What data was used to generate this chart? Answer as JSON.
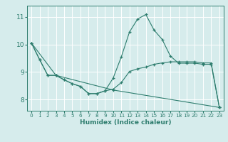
{
  "xlabel": "Humidex (Indice chaleur)",
  "background_color": "#d6ecec",
  "grid_color": "#ffffff",
  "line_color": "#2e7d6e",
  "xlim": [
    -0.5,
    23.5
  ],
  "ylim": [
    7.6,
    11.4
  ],
  "yticks": [
    8,
    9,
    10,
    11
  ],
  "xticks": [
    0,
    1,
    2,
    3,
    4,
    5,
    6,
    7,
    8,
    9,
    10,
    11,
    12,
    13,
    14,
    15,
    16,
    17,
    18,
    19,
    20,
    21,
    22,
    23
  ],
  "line1_x": [
    0,
    1,
    2,
    3,
    4,
    5,
    6,
    7,
    8,
    9,
    10,
    11,
    12,
    13,
    14,
    15,
    16,
    17,
    18,
    19,
    20,
    21,
    22,
    23
  ],
  "line1_y": [
    10.05,
    9.45,
    8.88,
    8.88,
    8.72,
    8.58,
    8.48,
    8.22,
    8.22,
    8.32,
    8.78,
    9.55,
    10.45,
    10.92,
    11.08,
    10.52,
    10.18,
    9.58,
    9.32,
    9.32,
    9.32,
    9.28,
    9.28,
    7.72
  ],
  "line2_x": [
    0,
    1,
    2,
    3,
    4,
    5,
    6,
    7,
    8,
    9,
    10,
    11,
    12,
    13,
    14,
    15,
    16,
    17,
    18,
    19,
    20,
    21,
    22,
    23
  ],
  "line2_y": [
    10.05,
    9.45,
    8.88,
    8.88,
    8.72,
    8.58,
    8.48,
    8.22,
    8.22,
    8.32,
    8.38,
    8.62,
    9.02,
    9.12,
    9.18,
    9.28,
    9.33,
    9.37,
    9.37,
    9.37,
    9.37,
    9.33,
    9.33,
    7.72
  ],
  "line3_x": [
    0,
    3,
    10,
    23
  ],
  "line3_y": [
    10.05,
    8.88,
    8.35,
    7.72
  ]
}
